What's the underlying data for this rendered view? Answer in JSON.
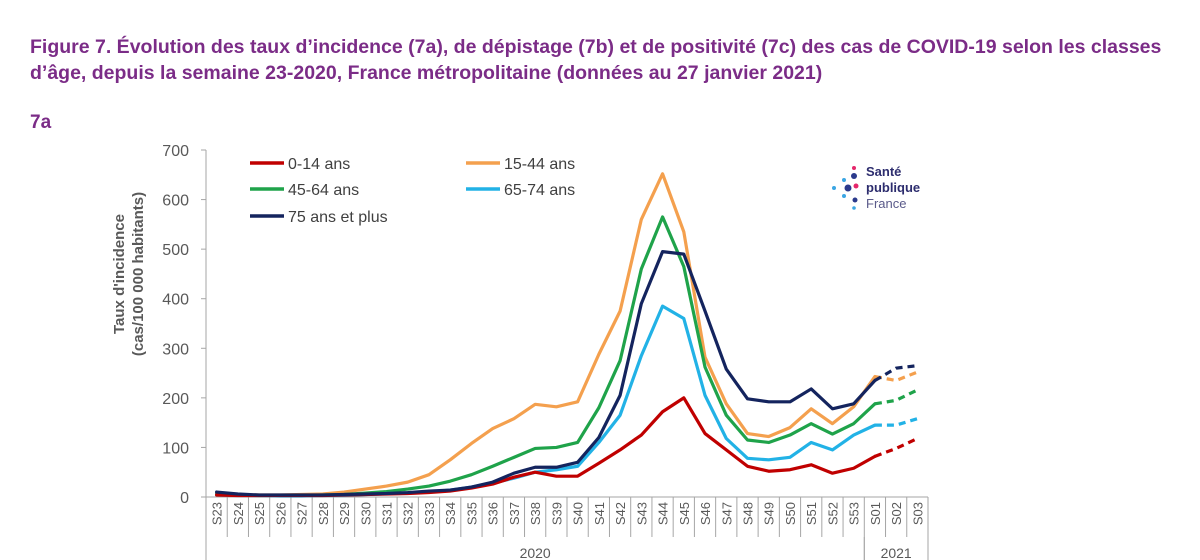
{
  "figure": {
    "title": "Figure 7. Évolution des taux d’incidence (7a), de dépistage (7b) et de positivité (7c) des cas de COVID-19 selon les classes d’âge, depuis la semaine 23-2020, France métropolitaine (données au 27 janvier 2021)",
    "panel": "7a"
  },
  "logo": {
    "line1": "Santé",
    "line2": "publique",
    "line3": "France",
    "icon": "dots-logo-icon"
  },
  "chart_data": {
    "type": "line",
    "title": "",
    "xlabel": "",
    "ylabel": "Taux d'incidence",
    "ylabel2": "(cas/100 000 habitants)",
    "ylim": [
      0,
      700
    ],
    "yticks": [
      0,
      100,
      200,
      300,
      400,
      500,
      600,
      700
    ],
    "grid": false,
    "legend_position": "top-left",
    "categories": [
      "S23",
      "S24",
      "S25",
      "S26",
      "S27",
      "S28",
      "S29",
      "S30",
      "S31",
      "S32",
      "S33",
      "S34",
      "S35",
      "S36",
      "S37",
      "S38",
      "S39",
      "S40",
      "S41",
      "S42",
      "S43",
      "S44",
      "S45",
      "S46",
      "S47",
      "S48",
      "S49",
      "S50",
      "S51",
      "S52",
      "S53",
      "S01",
      "S02",
      "S03"
    ],
    "year_groups": [
      {
        "label": "2020",
        "first": "S23",
        "last": "S53"
      },
      {
        "label": "2021",
        "first": "S01",
        "last": "S03"
      }
    ],
    "dashed_last_points": 2,
    "series": [
      {
        "name": "0-14 ans",
        "color": "#c00000",
        "values": [
          4,
          3,
          3,
          3,
          3,
          3,
          4,
          5,
          6,
          7,
          9,
          12,
          18,
          26,
          40,
          50,
          42,
          42,
          68,
          95,
          125,
          172,
          200,
          128,
          95,
          62,
          52,
          55,
          65,
          48,
          58,
          82,
          98,
          118
        ]
      },
      {
        "name": "15-44 ans",
        "color": "#f4a04e",
        "values": [
          8,
          5,
          4,
          4,
          5,
          6,
          10,
          16,
          22,
          30,
          45,
          75,
          108,
          138,
          158,
          187,
          182,
          192,
          288,
          375,
          560,
          652,
          535,
          282,
          188,
          128,
          122,
          140,
          178,
          148,
          182,
          243,
          235,
          252
        ]
      },
      {
        "name": "45-64 ans",
        "color": "#1fa34a",
        "values": [
          6,
          4,
          3,
          3,
          3,
          4,
          5,
          8,
          11,
          16,
          22,
          32,
          45,
          62,
          80,
          98,
          100,
          110,
          180,
          275,
          460,
          565,
          465,
          262,
          165,
          115,
          110,
          125,
          148,
          127,
          148,
          188,
          195,
          216
        ]
      },
      {
        "name": "65-74 ans",
        "color": "#22b2e6",
        "values": [
          4,
          3,
          3,
          2,
          2,
          3,
          3,
          5,
          7,
          8,
          10,
          14,
          20,
          28,
          38,
          50,
          55,
          62,
          110,
          165,
          285,
          385,
          360,
          205,
          118,
          78,
          75,
          80,
          110,
          95,
          125,
          145,
          145,
          158
        ]
      },
      {
        "name": "75 ans et plus",
        "color": "#14245e",
        "values": [
          10,
          6,
          4,
          4,
          4,
          4,
          5,
          6,
          7,
          9,
          12,
          14,
          20,
          30,
          48,
          60,
          60,
          70,
          120,
          205,
          390,
          495,
          490,
          375,
          258,
          198,
          192,
          192,
          218,
          178,
          188,
          235,
          260,
          265
        ]
      }
    ]
  }
}
